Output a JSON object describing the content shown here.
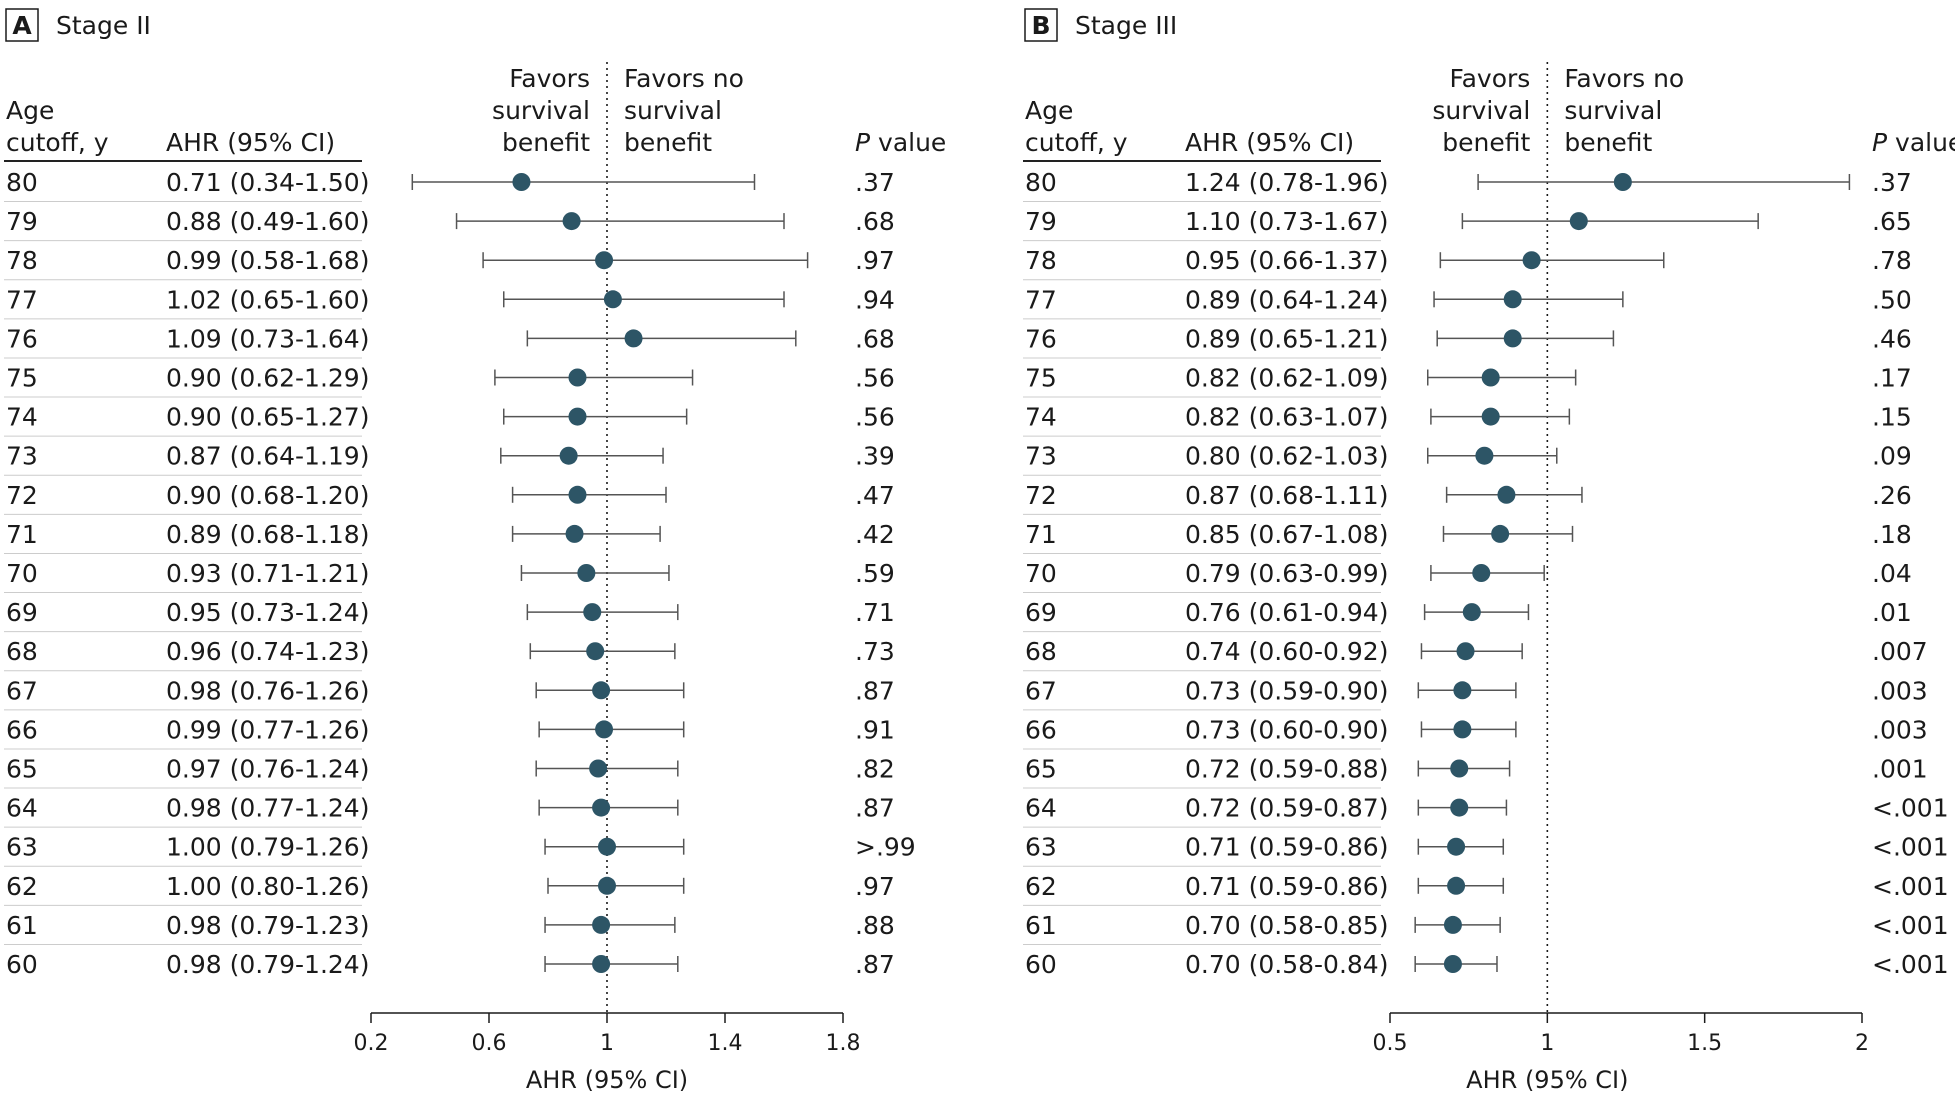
{
  "chart_data": [
    {
      "type": "forest",
      "panel_letter": "A",
      "title": "Stage II",
      "col_headers": {
        "age_line1": "Age",
        "age_line2": "cutoff, y",
        "ahr": "AHR (95% CI)",
        "favors_left": [
          "Favors",
          "survival",
          "benefit"
        ],
        "favors_right": [
          "Favors no",
          "survival",
          "benefit"
        ],
        "p_italic": "P",
        "p_rest": " value"
      },
      "xlabel": "AHR (95% CI)",
      "xlim": [
        0.2,
        1.8
      ],
      "xticks": [
        0.2,
        0.6,
        1,
        1.4,
        1.8
      ],
      "tick_labels": [
        "0.2",
        "0.6",
        "1",
        "1.4",
        "1.8"
      ],
      "reference_line": 1,
      "rows": [
        {
          "age": "80",
          "ahr_text": "0.71 (0.34-1.50)",
          "ahr": 0.71,
          "lo": 0.34,
          "hi": 1.5,
          "p": ".37"
        },
        {
          "age": "79",
          "ahr_text": "0.88 (0.49-1.60)",
          "ahr": 0.88,
          "lo": 0.49,
          "hi": 1.6,
          "p": ".68"
        },
        {
          "age": "78",
          "ahr_text": "0.99 (0.58-1.68)",
          "ahr": 0.99,
          "lo": 0.58,
          "hi": 1.68,
          "p": ".97"
        },
        {
          "age": "77",
          "ahr_text": "1.02 (0.65-1.60)",
          "ahr": 1.02,
          "lo": 0.65,
          "hi": 1.6,
          "p": ".94"
        },
        {
          "age": "76",
          "ahr_text": "1.09 (0.73-1.64)",
          "ahr": 1.09,
          "lo": 0.73,
          "hi": 1.64,
          "p": ".68"
        },
        {
          "age": "75",
          "ahr_text": "0.90 (0.62-1.29)",
          "ahr": 0.9,
          "lo": 0.62,
          "hi": 1.29,
          "p": ".56"
        },
        {
          "age": "74",
          "ahr_text": "0.90 (0.65-1.27)",
          "ahr": 0.9,
          "lo": 0.65,
          "hi": 1.27,
          "p": ".56"
        },
        {
          "age": "73",
          "ahr_text": "0.87 (0.64-1.19)",
          "ahr": 0.87,
          "lo": 0.64,
          "hi": 1.19,
          "p": ".39"
        },
        {
          "age": "72",
          "ahr_text": "0.90 (0.68-1.20)",
          "ahr": 0.9,
          "lo": 0.68,
          "hi": 1.2,
          "p": ".47"
        },
        {
          "age": "71",
          "ahr_text": "0.89 (0.68-1.18)",
          "ahr": 0.89,
          "lo": 0.68,
          "hi": 1.18,
          "p": ".42"
        },
        {
          "age": "70",
          "ahr_text": "0.93 (0.71-1.21)",
          "ahr": 0.93,
          "lo": 0.71,
          "hi": 1.21,
          "p": ".59"
        },
        {
          "age": "69",
          "ahr_text": "0.95 (0.73-1.24)",
          "ahr": 0.95,
          "lo": 0.73,
          "hi": 1.24,
          "p": ".71"
        },
        {
          "age": "68",
          "ahr_text": "0.96 (0.74-1.23)",
          "ahr": 0.96,
          "lo": 0.74,
          "hi": 1.23,
          "p": ".73"
        },
        {
          "age": "67",
          "ahr_text": "0.98 (0.76-1.26)",
          "ahr": 0.98,
          "lo": 0.76,
          "hi": 1.26,
          "p": ".87"
        },
        {
          "age": "66",
          "ahr_text": "0.99 (0.77-1.26)",
          "ahr": 0.99,
          "lo": 0.77,
          "hi": 1.26,
          "p": ".91"
        },
        {
          "age": "65",
          "ahr_text": "0.97 (0.76-1.24)",
          "ahr": 0.97,
          "lo": 0.76,
          "hi": 1.24,
          "p": ".82"
        },
        {
          "age": "64",
          "ahr_text": "0.98 (0.77-1.24)",
          "ahr": 0.98,
          "lo": 0.77,
          "hi": 1.24,
          "p": ".87"
        },
        {
          "age": "63",
          "ahr_text": "1.00 (0.79-1.26)",
          "ahr": 1.0,
          "lo": 0.79,
          "hi": 1.26,
          "p": ">.99"
        },
        {
          "age": "62",
          "ahr_text": "1.00 (0.80-1.26)",
          "ahr": 1.0,
          "lo": 0.8,
          "hi": 1.26,
          "p": ".97"
        },
        {
          "age": "61",
          "ahr_text": "0.98 (0.79-1.23)",
          "ahr": 0.98,
          "lo": 0.79,
          "hi": 1.23,
          "p": ".88"
        },
        {
          "age": "60",
          "ahr_text": "0.98 (0.79-1.24)",
          "ahr": 0.98,
          "lo": 0.79,
          "hi": 1.24,
          "p": ".87"
        }
      ]
    },
    {
      "type": "forest",
      "panel_letter": "B",
      "title": "Stage III",
      "col_headers": {
        "age_line1": "Age",
        "age_line2": "cutoff, y",
        "ahr": "AHR (95% CI)",
        "favors_left": [
          "Favors",
          "survival",
          "benefit"
        ],
        "favors_right": [
          "Favors no",
          "survival",
          "benefit"
        ],
        "p_italic": "P",
        "p_rest": " value"
      },
      "xlabel": "AHR (95% CI)",
      "xlim": [
        0.5,
        2
      ],
      "xticks": [
        0.5,
        1,
        1.5,
        2
      ],
      "tick_labels": [
        "0.5",
        "1",
        "1.5",
        "2"
      ],
      "reference_line": 1,
      "rows": [
        {
          "age": "80",
          "ahr_text": "1.24 (0.78-1.96)",
          "ahr": 1.24,
          "lo": 0.78,
          "hi": 1.96,
          "p": ".37"
        },
        {
          "age": "79",
          "ahr_text": "1.10 (0.73-1.67)",
          "ahr": 1.1,
          "lo": 0.73,
          "hi": 1.67,
          "p": ".65"
        },
        {
          "age": "78",
          "ahr_text": "0.95 (0.66-1.37)",
          "ahr": 0.95,
          "lo": 0.66,
          "hi": 1.37,
          "p": ".78"
        },
        {
          "age": "77",
          "ahr_text": "0.89 (0.64-1.24)",
          "ahr": 0.89,
          "lo": 0.64,
          "hi": 1.24,
          "p": ".50"
        },
        {
          "age": "76",
          "ahr_text": "0.89 (0.65-1.21)",
          "ahr": 0.89,
          "lo": 0.65,
          "hi": 1.21,
          "p": ".46"
        },
        {
          "age": "75",
          "ahr_text": "0.82 (0.62-1.09)",
          "ahr": 0.82,
          "lo": 0.62,
          "hi": 1.09,
          "p": ".17"
        },
        {
          "age": "74",
          "ahr_text": "0.82 (0.63-1.07)",
          "ahr": 0.82,
          "lo": 0.63,
          "hi": 1.07,
          "p": ".15"
        },
        {
          "age": "73",
          "ahr_text": "0.80 (0.62-1.03)",
          "ahr": 0.8,
          "lo": 0.62,
          "hi": 1.03,
          "p": ".09"
        },
        {
          "age": "72",
          "ahr_text": "0.87 (0.68-1.11)",
          "ahr": 0.87,
          "lo": 0.68,
          "hi": 1.11,
          "p": ".26"
        },
        {
          "age": "71",
          "ahr_text": "0.85 (0.67-1.08)",
          "ahr": 0.85,
          "lo": 0.67,
          "hi": 1.08,
          "p": ".18"
        },
        {
          "age": "70",
          "ahr_text": "0.79 (0.63-0.99)",
          "ahr": 0.79,
          "lo": 0.63,
          "hi": 0.99,
          "p": ".04"
        },
        {
          "age": "69",
          "ahr_text": "0.76 (0.61-0.94)",
          "ahr": 0.76,
          "lo": 0.61,
          "hi": 0.94,
          "p": ".01"
        },
        {
          "age": "68",
          "ahr_text": "0.74 (0.60-0.92)",
          "ahr": 0.74,
          "lo": 0.6,
          "hi": 0.92,
          "p": ".007"
        },
        {
          "age": "67",
          "ahr_text": "0.73 (0.59-0.90)",
          "ahr": 0.73,
          "lo": 0.59,
          "hi": 0.9,
          "p": ".003"
        },
        {
          "age": "66",
          "ahr_text": "0.73 (0.60-0.90)",
          "ahr": 0.73,
          "lo": 0.6,
          "hi": 0.9,
          "p": ".003"
        },
        {
          "age": "65",
          "ahr_text": "0.72 (0.59-0.88)",
          "ahr": 0.72,
          "lo": 0.59,
          "hi": 0.88,
          "p": ".001"
        },
        {
          "age": "64",
          "ahr_text": "0.72 (0.59-0.87)",
          "ahr": 0.72,
          "lo": 0.59,
          "hi": 0.87,
          "p": "<.001"
        },
        {
          "age": "63",
          "ahr_text": "0.71 (0.59-0.86)",
          "ahr": 0.71,
          "lo": 0.59,
          "hi": 0.86,
          "p": "<.001"
        },
        {
          "age": "62",
          "ahr_text": "0.71 (0.59-0.86)",
          "ahr": 0.71,
          "lo": 0.59,
          "hi": 0.86,
          "p": "<.001"
        },
        {
          "age": "61",
          "ahr_text": "0.70 (0.58-0.85)",
          "ahr": 0.7,
          "lo": 0.58,
          "hi": 0.85,
          "p": "<.001"
        },
        {
          "age": "60",
          "ahr_text": "0.70 (0.58-0.84)",
          "ahr": 0.7,
          "lo": 0.58,
          "hi": 0.84,
          "p": "<.001"
        }
      ]
    }
  ],
  "colors": {
    "marker": "#2d5566",
    "line": "#555555",
    "text": "#1a1a1a",
    "row_rule": "#cccccc",
    "header_rule": "#222222"
  }
}
